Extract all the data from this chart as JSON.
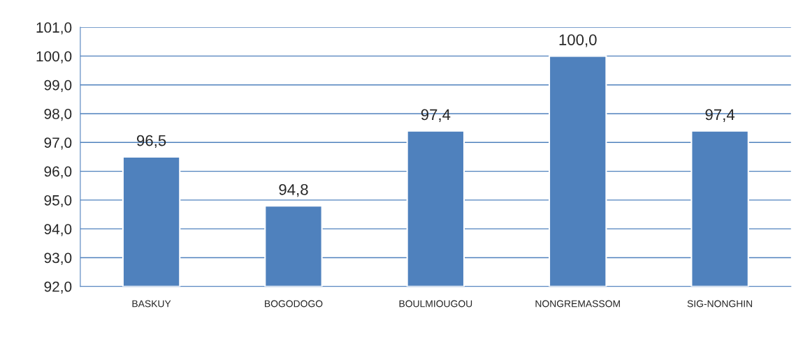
{
  "chart_data": {
    "type": "bar",
    "categories": [
      "BASKUY",
      "BOGODOGO",
      "BOULMIOUGOU",
      "NONGREMASSOM",
      "SIG-NONGHIN"
    ],
    "values": [
      96.5,
      94.8,
      97.4,
      100.0,
      97.4
    ],
    "value_labels": [
      "96,5",
      "94,8",
      "97,4",
      "100,0",
      "97,4"
    ],
    "color": "#4f81bd",
    "ylim": [
      92,
      101
    ],
    "yticks": [
      {
        "value": 92,
        "label": "92,0"
      },
      {
        "value": 93,
        "label": "93,0"
      },
      {
        "value": 94,
        "label": "94,0"
      },
      {
        "value": 95,
        "label": "95,0"
      },
      {
        "value": 96,
        "label": "96,0"
      },
      {
        "value": 97,
        "label": "97,0"
      },
      {
        "value": 98,
        "label": "98,0"
      },
      {
        "value": 99,
        "label": "99,0"
      },
      {
        "value": 100,
        "label": "100,0"
      },
      {
        "value": 101,
        "label": "101,0"
      }
    ],
    "grid": "y",
    "legend": false
  }
}
